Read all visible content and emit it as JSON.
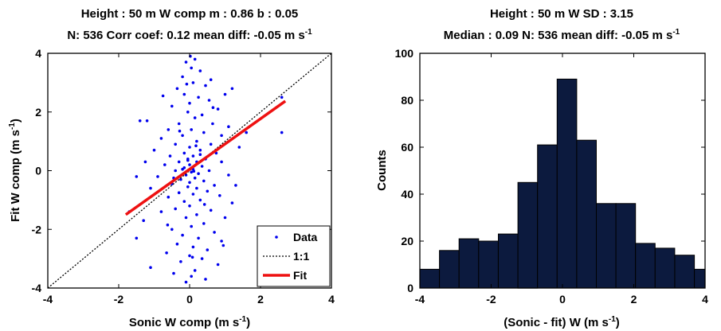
{
  "chart_data": [
    {
      "type": "scatter",
      "title_line1": "Height : 50 m  W comp   m : 0.86   b : 0.05",
      "title_line2": "N: 536  Corr coef: 0.12  mean diff: -0.05 m s",
      "title_line2_sup": "-1",
      "xlabel": "Sonic W comp (m s",
      "xlabel_sup": "-1",
      "xlabel_end": ")",
      "ylabel": "Fit W comp (m s",
      "ylabel_sup": "-1",
      "ylabel_end": ")",
      "xlim": [
        -4,
        4
      ],
      "ylim": [
        -4,
        4
      ],
      "xticks": [
        -4,
        -2,
        0,
        2,
        4
      ],
      "yticks": [
        -4,
        -2,
        0,
        2,
        4
      ],
      "xtick_labels": [
        "-4",
        "-2",
        "0",
        "2",
        "4"
      ],
      "ytick_labels": [
        "-4",
        "-2",
        "0",
        "2",
        "4"
      ],
      "legend_position": "bottom-right",
      "legend": [
        "Data",
        "1:1",
        "Fit"
      ],
      "fit_line": {
        "slope": 0.86,
        "intercept": 0.05,
        "x_range": [
          -1.8,
          2.7
        ],
        "color": "#ee1111"
      },
      "one_to_one_line": {
        "x_range": [
          -4,
          4
        ]
      },
      "data_color": "#0000ee",
      "points": [
        [
          0.02,
          3.9
        ],
        [
          -0.1,
          3.7
        ],
        [
          0.15,
          3.8
        ],
        [
          0.05,
          3.5
        ],
        [
          -0.2,
          3.2
        ],
        [
          0.3,
          3.4
        ],
        [
          0.6,
          3.1
        ],
        [
          0.1,
          3.0
        ],
        [
          -0.35,
          2.8
        ],
        [
          0.45,
          2.9
        ],
        [
          1.0,
          2.6
        ],
        [
          1.2,
          2.8
        ],
        [
          -0.15,
          2.6
        ],
        [
          0.25,
          2.5
        ],
        [
          0.0,
          2.3
        ],
        [
          0.55,
          2.4
        ],
        [
          -0.5,
          2.2
        ],
        [
          0.8,
          2.1
        ],
        [
          -0.05,
          2.0
        ],
        [
          0.35,
          1.9
        ],
        [
          -1.4,
          1.7
        ],
        [
          -1.2,
          1.7
        ],
        [
          0.15,
          1.8
        ],
        [
          -0.3,
          1.6
        ],
        [
          0.65,
          1.6
        ],
        [
          1.1,
          1.5
        ],
        [
          -0.6,
          1.4
        ],
        [
          0.05,
          1.4
        ],
        [
          0.4,
          1.3
        ],
        [
          -0.2,
          1.2
        ],
        [
          0.9,
          1.2
        ],
        [
          -0.8,
          1.1
        ],
        [
          0.2,
          1.0
        ],
        [
          -0.4,
          0.9
        ],
        [
          0.6,
          0.9
        ],
        [
          0.0,
          0.8
        ],
        [
          1.4,
          0.8
        ],
        [
          -1.0,
          0.7
        ],
        [
          0.3,
          0.7
        ],
        [
          -0.15,
          0.6
        ],
        [
          0.75,
          0.6
        ],
        [
          0.1,
          0.5
        ],
        [
          -0.55,
          0.5
        ],
        [
          0.45,
          0.4
        ],
        [
          -0.05,
          0.4
        ],
        [
          0.2,
          0.3
        ],
        [
          -0.3,
          0.3
        ],
        [
          0.9,
          0.3
        ],
        [
          0.0,
          0.2
        ],
        [
          -0.7,
          0.2
        ],
        [
          0.35,
          0.15
        ],
        [
          -0.15,
          0.1
        ],
        [
          0.1,
          0.05
        ],
        [
          0.55,
          0.0
        ],
        [
          -0.4,
          0.0
        ],
        [
          0.05,
          -0.05
        ],
        [
          0.25,
          -0.1
        ],
        [
          -0.1,
          -0.15
        ],
        [
          1.1,
          -0.15
        ],
        [
          -0.9,
          -0.2
        ],
        [
          0.15,
          -0.25
        ],
        [
          -0.25,
          -0.3
        ],
        [
          0.4,
          -0.35
        ],
        [
          0.0,
          -0.4
        ],
        [
          -0.5,
          -0.45
        ],
        [
          0.7,
          -0.5
        ],
        [
          -0.05,
          -0.55
        ],
        [
          0.2,
          -0.6
        ],
        [
          -1.1,
          -0.6
        ],
        [
          0.5,
          -0.7
        ],
        [
          -0.3,
          -0.75
        ],
        [
          0.1,
          -0.8
        ],
        [
          0.85,
          -0.85
        ],
        [
          -0.6,
          -0.9
        ],
        [
          0.3,
          -1.0
        ],
        [
          -0.15,
          -1.05
        ],
        [
          1.2,
          -1.1
        ],
        [
          0.0,
          -1.2
        ],
        [
          -0.4,
          -1.3
        ],
        [
          0.6,
          -1.35
        ],
        [
          -0.8,
          -1.4
        ],
        [
          0.2,
          -1.5
        ],
        [
          -0.1,
          -1.6
        ],
        [
          1.0,
          -1.6
        ],
        [
          -1.3,
          -1.7
        ],
        [
          0.4,
          -1.8
        ],
        [
          0.05,
          -1.9
        ],
        [
          -0.5,
          -2.0
        ],
        [
          0.7,
          -2.1
        ],
        [
          -0.2,
          -2.2
        ],
        [
          0.25,
          -2.3
        ],
        [
          -1.5,
          -2.3
        ],
        [
          0.9,
          -2.4
        ],
        [
          -0.35,
          -2.5
        ],
        [
          0.1,
          -2.6
        ],
        [
          0.5,
          -2.7
        ],
        [
          -0.65,
          -2.8
        ],
        [
          0.0,
          -2.9
        ],
        [
          0.35,
          -3.0
        ],
        [
          -0.25,
          -3.1
        ],
        [
          0.8,
          -3.2
        ],
        [
          -1.1,
          -3.3
        ],
        [
          0.15,
          -3.4
        ],
        [
          -0.45,
          -3.5
        ],
        [
          0.05,
          -3.6
        ],
        [
          0.45,
          -3.7
        ],
        [
          -0.1,
          -3.8
        ],
        [
          2.6,
          2.5
        ],
        [
          2.6,
          1.3
        ],
        [
          1.6,
          1.3
        ],
        [
          -1.7,
          -1.4
        ],
        [
          -1.5,
          -0.2
        ],
        [
          -0.2,
          0.05
        ],
        [
          0.12,
          -0.02
        ],
        [
          -0.05,
          0.35
        ],
        [
          0.3,
          0.55
        ],
        [
          -0.45,
          -0.25
        ],
        [
          0.18,
          0.85
        ],
        [
          -0.28,
          1.35
        ],
        [
          0.42,
          -1.15
        ],
        [
          -0.62,
          -1.85
        ],
        [
          0.66,
          2.15
        ],
        [
          -0.75,
          2.55
        ],
        [
          0.95,
          -2.55
        ],
        [
          1.3,
          -0.5
        ],
        [
          -1.25,
          0.3
        ],
        [
          0.08,
          -2.95
        ],
        [
          -0.08,
          2.95
        ]
      ]
    },
    {
      "type": "bar",
      "title_line1": "Height : 50 m  W       SD : 3.15",
      "title_line2": "Median : 0.09   N: 536  mean diff: -0.05 m s",
      "title_line2_sup": "-1",
      "xlabel": "(Sonic -  fit) W (m s",
      "xlabel_sup": "-1",
      "xlabel_end": ")",
      "ylabel": "Counts",
      "xlim": [
        -4,
        4
      ],
      "ylim": [
        0,
        100
      ],
      "xticks": [
        -4,
        -2,
        0,
        2,
        4
      ],
      "yticks": [
        0,
        20,
        40,
        60,
        80,
        100
      ],
      "xtick_labels": [
        "-4",
        "-2",
        "0",
        "2",
        "4"
      ],
      "ytick_labels": [
        "0",
        "20",
        "40",
        "60",
        "80",
        "100"
      ],
      "bar_color": "#0c1a3e",
      "bin_edges": [
        -4.0,
        -3.45,
        -2.9,
        -2.35,
        -1.8,
        -1.25,
        -0.7,
        -0.15,
        0.4,
        0.95,
        1.5,
        2.05,
        2.6,
        3.15,
        3.7,
        4.0
      ],
      "values": [
        8,
        16,
        21,
        20,
        23,
        45,
        61,
        89,
        63,
        36,
        36,
        19,
        17,
        14,
        8
      ]
    }
  ]
}
